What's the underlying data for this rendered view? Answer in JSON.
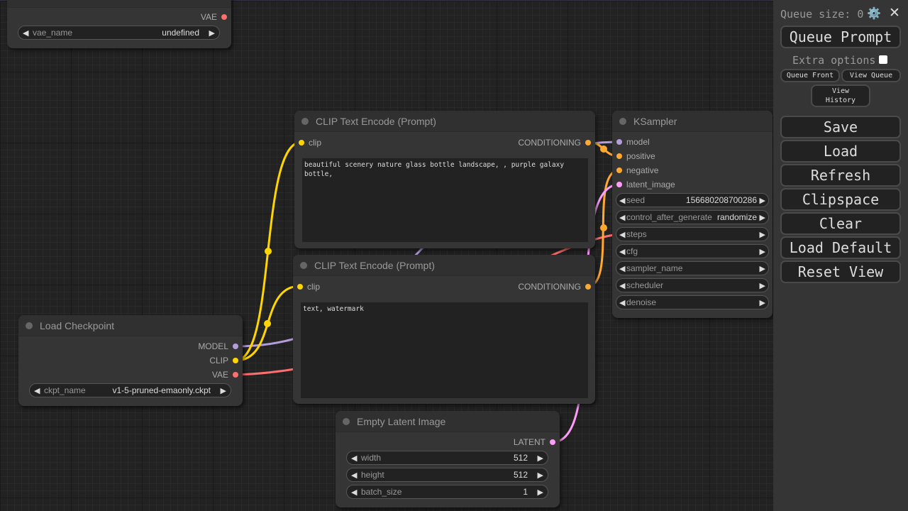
{
  "colors": {
    "clip": "#ffd500",
    "model": "#b39ddb",
    "vae": "#ff6e6e",
    "conditioning": "#ffa931",
    "latent": "#ff9cf9"
  },
  "vae_node": {
    "output": "VAE",
    "widget": {
      "label": "vae_name",
      "value": "undefined"
    }
  },
  "clip1": {
    "title": "CLIP Text Encode (Prompt)",
    "input": "clip",
    "output": "CONDITIONING",
    "text": "beautiful scenery nature glass bottle landscape, , purple galaxy bottle,"
  },
  "clip2": {
    "title": "CLIP Text Encode (Prompt)",
    "input": "clip",
    "output": "CONDITIONING",
    "text": "text, watermark"
  },
  "checkpoint": {
    "title": "Load Checkpoint",
    "outputs": [
      "MODEL",
      "CLIP",
      "VAE"
    ],
    "widget": {
      "label": "ckpt_name",
      "value": "v1-5-pruned-emaonly.ckpt"
    }
  },
  "latent": {
    "title": "Empty Latent Image",
    "output": "LATENT",
    "widgets": [
      {
        "label": "width",
        "value": "512"
      },
      {
        "label": "height",
        "value": "512"
      },
      {
        "label": "batch_size",
        "value": "1"
      }
    ]
  },
  "ksampler": {
    "title": "KSampler",
    "inputs": [
      "model",
      "positive",
      "negative",
      "latent_image"
    ],
    "widgets": [
      {
        "label": "seed",
        "value": "156680208700286"
      },
      {
        "label": "control_after_generate",
        "value": "randomize"
      },
      {
        "label": "steps",
        "value": ""
      },
      {
        "label": "cfg",
        "value": ""
      },
      {
        "label": "sampler_name",
        "value": ""
      },
      {
        "label": "scheduler",
        "value": ""
      },
      {
        "label": "denoise",
        "value": ""
      }
    ]
  },
  "panel": {
    "queue_size": "Queue size: 0",
    "gear_icon": "⚙️",
    "close_icon": "✕",
    "queue_prompt": "Queue Prompt",
    "extra_options": "Extra options",
    "queue_front": "Queue Front",
    "view_queue": "View Queue",
    "view_history": "View History",
    "buttons": [
      "Save",
      "Load",
      "Refresh",
      "Clipspace",
      "Clear",
      "Load Default",
      "Reset View"
    ]
  }
}
